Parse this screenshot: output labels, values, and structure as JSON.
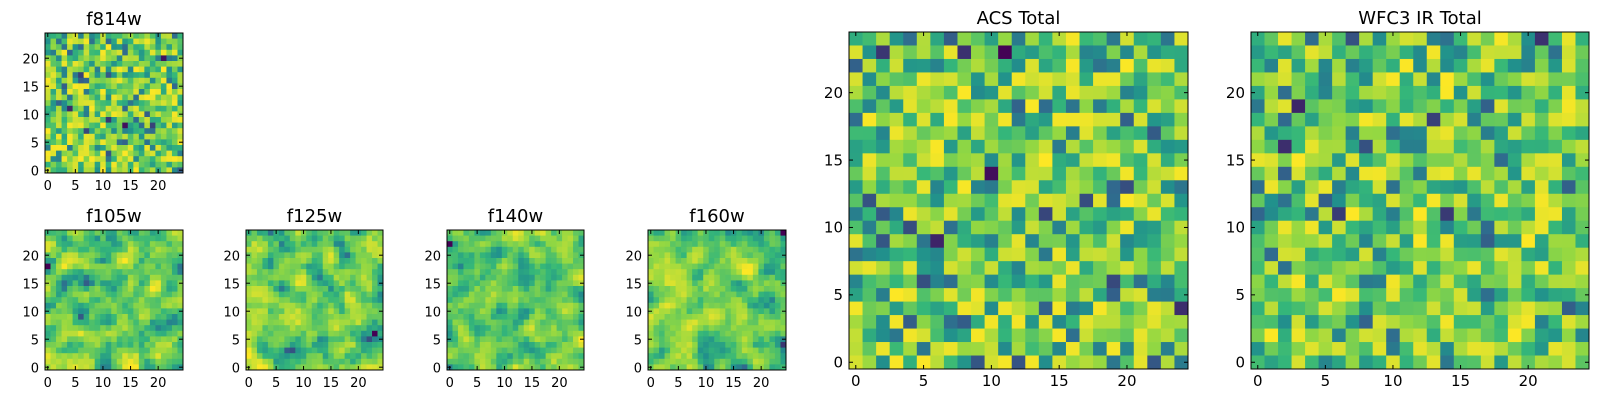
{
  "chart_data": [
    {
      "type": "heatmap",
      "title": "f814w",
      "xticks": [
        0,
        5,
        10,
        15,
        20
      ],
      "yticks": [
        0,
        5,
        10,
        15,
        20
      ],
      "xlim": [
        -0.5,
        24.5
      ],
      "ylim": [
        -0.5,
        24.5
      ],
      "colormap": "viridis",
      "grid_size": 25,
      "seed": 11,
      "grain": 1
    },
    {
      "type": "heatmap",
      "title": "f105w",
      "xticks": [
        0,
        5,
        10,
        15,
        20
      ],
      "yticks": [
        0,
        5,
        10,
        15,
        20
      ],
      "xlim": [
        -0.5,
        24.5
      ],
      "ylim": [
        -0.5,
        24.5
      ],
      "colormap": "viridis",
      "grid_size": 25,
      "seed": 23,
      "grain": 2
    },
    {
      "type": "heatmap",
      "title": "f125w",
      "xticks": [
        0,
        5,
        10,
        15,
        20
      ],
      "yticks": [
        0,
        5,
        10,
        15,
        20
      ],
      "xlim": [
        -0.5,
        24.5
      ],
      "ylim": [
        -0.5,
        24.5
      ],
      "colormap": "viridis",
      "grid_size": 25,
      "seed": 37,
      "grain": 2
    },
    {
      "type": "heatmap",
      "title": "f140w",
      "xticks": [
        0,
        5,
        10,
        15,
        20
      ],
      "yticks": [
        0,
        5,
        10,
        15,
        20
      ],
      "xlim": [
        -0.5,
        24.5
      ],
      "ylim": [
        -0.5,
        24.5
      ],
      "colormap": "viridis",
      "grid_size": 25,
      "seed": 41,
      "grain": 2
    },
    {
      "type": "heatmap",
      "title": "f160w",
      "xticks": [
        0,
        5,
        10,
        15,
        20
      ],
      "yticks": [
        0,
        5,
        10,
        15,
        20
      ],
      "xlim": [
        -0.5,
        24.5
      ],
      "ylim": [
        -0.5,
        24.5
      ],
      "colormap": "viridis",
      "grid_size": 25,
      "seed": 53,
      "grain": 2
    },
    {
      "type": "heatmap",
      "title": "ACS Total",
      "xticks": [
        0,
        5,
        10,
        15,
        20
      ],
      "yticks": [
        0,
        5,
        10,
        15,
        20
      ],
      "xlim": [
        -0.5,
        24.5
      ],
      "ylim": [
        -0.5,
        24.5
      ],
      "colormap": "viridis",
      "grid_size": 25,
      "seed": 67,
      "grain": 1
    },
    {
      "type": "heatmap",
      "title": "WFC3 IR Total",
      "xticks": [
        0,
        5,
        10,
        15,
        20
      ],
      "yticks": [
        0,
        5,
        10,
        15,
        20
      ],
      "xlim": [
        -0.5,
        24.5
      ],
      "ylim": [
        -0.5,
        24.5
      ],
      "colormap": "viridis",
      "grid_size": 25,
      "seed": 79,
      "grain": 1
    }
  ],
  "colormap_stops": [
    "#440154",
    "#31688e",
    "#21918c",
    "#35b779",
    "#90d743",
    "#fde725"
  ]
}
